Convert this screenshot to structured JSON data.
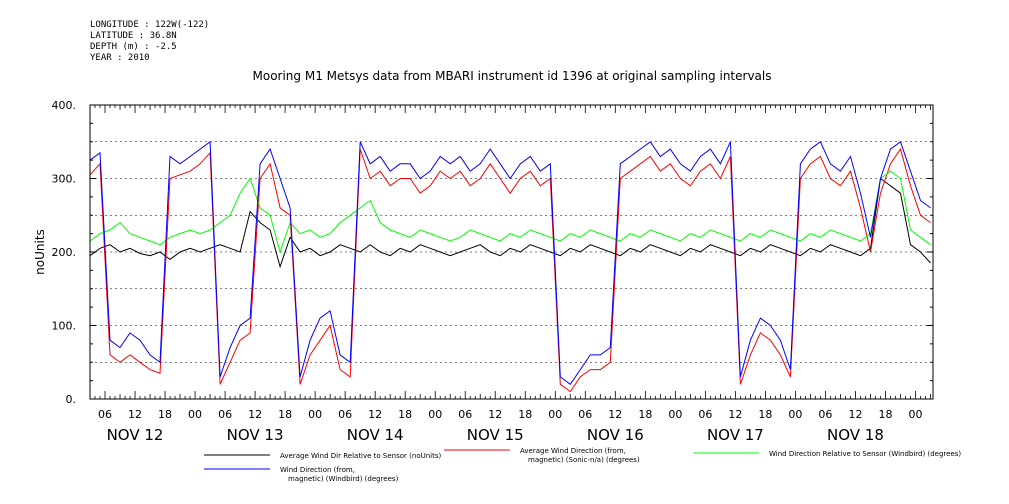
{
  "header": {
    "longitude": "LONGITUDE : 122W(-122)",
    "latitude": "LATITUDE : 36.8N",
    "depth": "DEPTH (m) : -2.5",
    "year": "YEAR : 2010"
  },
  "chart_data": {
    "type": "line",
    "title": "Mooring M1 Metsys data from MBARI instrument id 1396 at original sampling intervals",
    "ylabel": "noUnits",
    "xlabel": "",
    "ylim": [
      0,
      400
    ],
    "y_ticks": [
      0,
      100,
      200,
      300,
      400
    ],
    "y_tick_labels": [
      "0.",
      "100.",
      "200.",
      "300.",
      "400."
    ],
    "x_unit": "hours since NOV 12 00:00",
    "xlim": [
      3.0,
      171.5
    ],
    "x_hour_ticks": [
      6,
      12,
      18,
      0,
      6,
      12,
      18,
      0,
      6,
      12,
      18,
      0,
      6,
      12,
      18,
      0,
      6,
      12,
      18,
      0,
      6,
      12,
      18,
      0,
      6,
      12,
      18,
      0
    ],
    "x_hour_tick_labels": [
      "06",
      "12",
      "18",
      "00",
      "06",
      "12",
      "18",
      "00",
      "06",
      "12",
      "18",
      "00",
      "06",
      "12",
      "18",
      "00",
      "06",
      "12",
      "18",
      "00",
      "06",
      "12",
      "18",
      "00",
      "06",
      "12",
      "18",
      "00"
    ],
    "day_labels": [
      "NOV 12",
      "NOV 13",
      "NOV 14",
      "NOV 15",
      "NOV 16",
      "NOV 17",
      "NOV 18"
    ],
    "legend_position": "bottom",
    "series": [
      {
        "name": "Average Wind Dir Relative to Sensor (noUnits)",
        "color": "#000000",
        "x": [
          3,
          5,
          7,
          9,
          11,
          13,
          15,
          17,
          19,
          21,
          23,
          25,
          27,
          29,
          31,
          33,
          35,
          37,
          39,
          41,
          43,
          45,
          47,
          49,
          51,
          53,
          55,
          57,
          59,
          61,
          63,
          65,
          67,
          69,
          71,
          73,
          75,
          77,
          79,
          81,
          83,
          85,
          87,
          89,
          91,
          93,
          95,
          97,
          99,
          101,
          103,
          105,
          107,
          109,
          111,
          113,
          115,
          117,
          119,
          121,
          123,
          125,
          127,
          129,
          131,
          133,
          135,
          137,
          139,
          141,
          143,
          145,
          147,
          149,
          151,
          153,
          155,
          157,
          159,
          161,
          163,
          165,
          167,
          169,
          171
        ],
        "values": [
          195,
          205,
          210,
          200,
          205,
          198,
          195,
          200,
          190,
          200,
          205,
          200,
          205,
          210,
          205,
          200,
          255,
          240,
          230,
          180,
          220,
          200,
          205,
          195,
          200,
          210,
          205,
          200,
          210,
          200,
          195,
          205,
          200,
          210,
          205,
          200,
          195,
          200,
          205,
          210,
          200,
          195,
          205,
          200,
          210,
          205,
          200,
          195,
          205,
          200,
          210,
          205,
          200,
          195,
          205,
          200,
          210,
          205,
          200,
          195,
          205,
          200,
          210,
          205,
          200,
          195,
          205,
          200,
          210,
          205,
          200,
          195,
          205,
          200,
          210,
          205,
          200,
          195,
          205,
          300,
          290,
          280,
          210,
          200,
          185
        ]
      },
      {
        "name": "Average Wind Direction (from, magnetic) (Sonic-n/a) (degrees)",
        "color": "#ff0000",
        "x": [
          3,
          5,
          7,
          9,
          11,
          13,
          15,
          17,
          19,
          21,
          23,
          25,
          27,
          29,
          31,
          33,
          35,
          37,
          39,
          41,
          43,
          45,
          47,
          49,
          51,
          53,
          55,
          57,
          59,
          61,
          63,
          65,
          67,
          69,
          71,
          73,
          75,
          77,
          79,
          81,
          83,
          85,
          87,
          89,
          91,
          93,
          95,
          97,
          99,
          101,
          103,
          105,
          107,
          109,
          111,
          113,
          115,
          117,
          119,
          121,
          123,
          125,
          127,
          129,
          131,
          133,
          135,
          137,
          139,
          141,
          143,
          145,
          147,
          149,
          151,
          153,
          155,
          157,
          159,
          161,
          163,
          165,
          167,
          169,
          171
        ],
        "values": [
          305,
          320,
          60,
          50,
          60,
          50,
          40,
          35,
          300,
          305,
          310,
          320,
          335,
          20,
          50,
          80,
          90,
          300,
          320,
          260,
          250,
          20,
          60,
          80,
          100,
          40,
          30,
          340,
          300,
          310,
          290,
          300,
          300,
          280,
          290,
          310,
          300,
          310,
          290,
          300,
          320,
          300,
          280,
          300,
          310,
          290,
          300,
          20,
          10,
          30,
          40,
          40,
          50,
          300,
          310,
          320,
          330,
          310,
          320,
          300,
          290,
          310,
          320,
          300,
          330,
          20,
          60,
          90,
          80,
          60,
          30,
          300,
          320,
          330,
          300,
          290,
          310,
          260,
          200,
          280,
          320,
          340,
          290,
          250,
          240
        ]
      },
      {
        "name": "Wind Direction Relative to Sensor (Windbird) (degrees)",
        "color": "#00ff00",
        "x": [
          3,
          5,
          7,
          9,
          11,
          13,
          15,
          17,
          19,
          21,
          23,
          25,
          27,
          29,
          31,
          33,
          35,
          37,
          39,
          41,
          43,
          45,
          47,
          49,
          51,
          53,
          55,
          57,
          59,
          61,
          63,
          65,
          67,
          69,
          71,
          73,
          75,
          77,
          79,
          81,
          83,
          85,
          87,
          89,
          91,
          93,
          95,
          97,
          99,
          101,
          103,
          105,
          107,
          109,
          111,
          113,
          115,
          117,
          119,
          121,
          123,
          125,
          127,
          129,
          131,
          133,
          135,
          137,
          139,
          141,
          143,
          145,
          147,
          149,
          151,
          153,
          155,
          157,
          159,
          161,
          163,
          165,
          167,
          169,
          171
        ],
        "values": [
          215,
          225,
          230,
          240,
          225,
          220,
          215,
          210,
          220,
          225,
          230,
          225,
          230,
          240,
          250,
          280,
          300,
          260,
          250,
          200,
          240,
          225,
          230,
          220,
          225,
          240,
          250,
          260,
          270,
          240,
          230,
          225,
          220,
          230,
          225,
          220,
          215,
          220,
          230,
          225,
          220,
          215,
          225,
          220,
          230,
          225,
          220,
          215,
          225,
          220,
          230,
          225,
          220,
          215,
          225,
          220,
          230,
          225,
          220,
          215,
          225,
          220,
          230,
          225,
          220,
          215,
          225,
          220,
          230,
          225,
          220,
          215,
          225,
          220,
          230,
          225,
          220,
          215,
          225,
          300,
          310,
          300,
          230,
          220,
          210
        ]
      },
      {
        "name": "Wind Direction (from, magnetic) (Windbird) (degrees)",
        "color": "#0000ff",
        "x": [
          3,
          5,
          7,
          9,
          11,
          13,
          15,
          17,
          19,
          21,
          23,
          25,
          27,
          29,
          31,
          33,
          35,
          37,
          39,
          41,
          43,
          45,
          47,
          49,
          51,
          53,
          55,
          57,
          59,
          61,
          63,
          65,
          67,
          69,
          71,
          73,
          75,
          77,
          79,
          81,
          83,
          85,
          87,
          89,
          91,
          93,
          95,
          97,
          99,
          101,
          103,
          105,
          107,
          109,
          111,
          113,
          115,
          117,
          119,
          121,
          123,
          125,
          127,
          129,
          131,
          133,
          135,
          137,
          139,
          141,
          143,
          145,
          147,
          149,
          151,
          153,
          155,
          157,
          159,
          161,
          163,
          165,
          167,
          169,
          171
        ],
        "values": [
          325,
          335,
          80,
          70,
          90,
          80,
          60,
          50,
          330,
          320,
          330,
          340,
          350,
          30,
          70,
          100,
          110,
          320,
          340,
          300,
          260,
          30,
          80,
          110,
          120,
          60,
          50,
          350,
          320,
          330,
          310,
          320,
          320,
          300,
          310,
          330,
          320,
          330,
          310,
          320,
          340,
          320,
          300,
          320,
          330,
          310,
          320,
          30,
          20,
          40,
          60,
          60,
          70,
          320,
          330,
          340,
          350,
          330,
          340,
          320,
          310,
          330,
          340,
          320,
          350,
          30,
          80,
          110,
          100,
          80,
          40,
          320,
          340,
          350,
          320,
          310,
          330,
          280,
          220,
          300,
          340,
          350,
          310,
          270,
          260
        ]
      }
    ]
  }
}
